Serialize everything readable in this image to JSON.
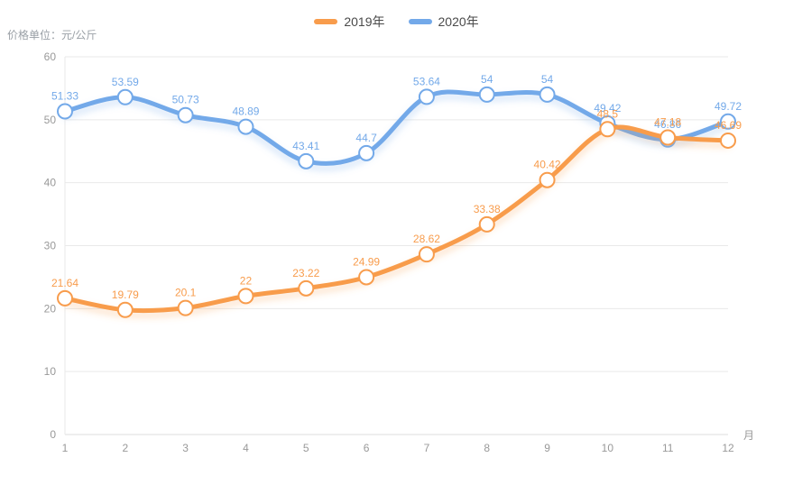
{
  "chart_data": {
    "type": "line",
    "smooth": true,
    "grid": true,
    "legend_position": "top-center",
    "x_categories": [
      "1",
      "2",
      "3",
      "4",
      "5",
      "6",
      "7",
      "8",
      "9",
      "10",
      "11",
      "12"
    ],
    "xlabel": "月",
    "ylabel": "价格单位：元/公斤",
    "ylim": [
      0,
      60
    ],
    "yticks": [
      0,
      10,
      20,
      30,
      40,
      50,
      60
    ],
    "series": [
      {
        "name": "2019年",
        "color": "#F89C4C",
        "z": 2,
        "values": [
          21.64,
          19.79,
          20.1,
          22,
          23.22,
          24.99,
          28.62,
          33.38,
          40.42,
          48.5,
          47.18,
          46.69
        ]
      },
      {
        "name": "2020年",
        "color": "#73A9E9",
        "z": 1,
        "values": [
          51.33,
          53.59,
          50.73,
          48.89,
          43.41,
          44.7,
          53.64,
          54,
          54,
          49.42,
          46.86,
          49.72
        ]
      }
    ],
    "colors": {
      "grid_line": "#E9E9E9",
      "axis_line": "#DDDDDD",
      "tick_label": "#999999",
      "legend_text": "#4A4A4A",
      "background": "#FFFFFF"
    }
  }
}
